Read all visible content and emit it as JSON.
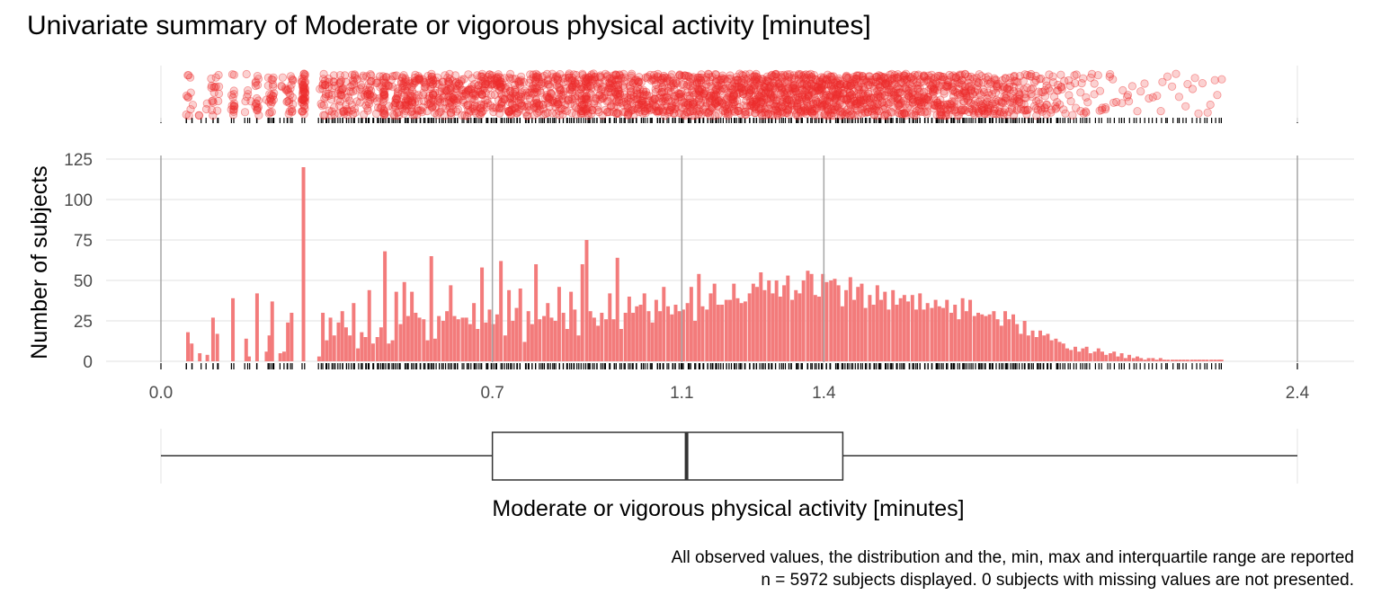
{
  "title": "Univariate summary of Moderate or vigorous physical activity [minutes]",
  "colors": {
    "bar": "#f37b7b",
    "point": "#ee2c2c",
    "grid_major": "#ebebeb",
    "vline": "#a6a6a6"
  },
  "chart_data": {
    "type": "bar",
    "title": "Univariate summary of Moderate or vigorous physical activity [minutes]",
    "xlabel": "Moderate or vigorous physical activity [minutes]",
    "ylabel": "Number of subjects",
    "xlim": [
      0.0,
      2.4
    ],
    "ylim": [
      0,
      125
    ],
    "x_ticks": [
      "0.0",
      "0.7",
      "1.1",
      "1.4",
      "2.4"
    ],
    "x_tick_values": [
      0.0,
      0.7,
      1.1,
      1.4,
      2.4
    ],
    "y_ticks": [
      0,
      25,
      50,
      75,
      100,
      125
    ],
    "grid": true,
    "summary": {
      "min": 0.0,
      "q1": 0.7,
      "median": 1.11,
      "q3": 1.44,
      "max": 2.4
    },
    "n_subjects": 5972,
    "n_missing": 0,
    "bars": [
      [
        0.057,
        18
      ],
      [
        0.065,
        11
      ],
      [
        0.082,
        5
      ],
      [
        0.098,
        4
      ],
      [
        0.11,
        27
      ],
      [
        0.119,
        17
      ],
      [
        0.152,
        39
      ],
      [
        0.18,
        14
      ],
      [
        0.186,
        3
      ],
      [
        0.203,
        42
      ],
      [
        0.223,
        6
      ],
      [
        0.229,
        16
      ],
      [
        0.235,
        37
      ],
      [
        0.252,
        5
      ],
      [
        0.26,
        6
      ],
      [
        0.268,
        24
      ],
      [
        0.276,
        30
      ],
      [
        0.301,
        120
      ],
      [
        0.334,
        3
      ],
      [
        0.342,
        30
      ],
      [
        0.35,
        13
      ],
      [
        0.358,
        27
      ],
      [
        0.366,
        16
      ],
      [
        0.375,
        24
      ],
      [
        0.383,
        31
      ],
      [
        0.391,
        21
      ],
      [
        0.399,
        16
      ],
      [
        0.407,
        36
      ],
      [
        0.416,
        8
      ],
      [
        0.424,
        18
      ],
      [
        0.432,
        15
      ],
      [
        0.44,
        44
      ],
      [
        0.448,
        11
      ],
      [
        0.457,
        15
      ],
      [
        0.465,
        21
      ],
      [
        0.473,
        68
      ],
      [
        0.481,
        11
      ],
      [
        0.489,
        13
      ],
      [
        0.497,
        43
      ],
      [
        0.506,
        23
      ],
      [
        0.514,
        49
      ],
      [
        0.522,
        28
      ],
      [
        0.53,
        43
      ],
      [
        0.538,
        30
      ],
      [
        0.546,
        27
      ],
      [
        0.555,
        26
      ],
      [
        0.563,
        13
      ],
      [
        0.571,
        65
      ],
      [
        0.579,
        14
      ],
      [
        0.587,
        28
      ],
      [
        0.596,
        25
      ],
      [
        0.604,
        31
      ],
      [
        0.612,
        47
      ],
      [
        0.62,
        28
      ],
      [
        0.628,
        26
      ],
      [
        0.637,
        27
      ],
      [
        0.645,
        27
      ],
      [
        0.653,
        23
      ],
      [
        0.661,
        36
      ],
      [
        0.669,
        20
      ],
      [
        0.678,
        58
      ],
      [
        0.686,
        24
      ],
      [
        0.694,
        32
      ],
      [
        0.702,
        23
      ],
      [
        0.71,
        29
      ],
      [
        0.718,
        62
      ],
      [
        0.727,
        16
      ],
      [
        0.735,
        44
      ],
      [
        0.743,
        25
      ],
      [
        0.751,
        33
      ],
      [
        0.759,
        45
      ],
      [
        0.768,
        12
      ],
      [
        0.776,
        31
      ],
      [
        0.784,
        23
      ],
      [
        0.792,
        60
      ],
      [
        0.8,
        26
      ],
      [
        0.809,
        28
      ],
      [
        0.817,
        36
      ],
      [
        0.825,
        27
      ],
      [
        0.833,
        25
      ],
      [
        0.841,
        46
      ],
      [
        0.85,
        30
      ],
      [
        0.858,
        20
      ],
      [
        0.866,
        43
      ],
      [
        0.874,
        32
      ],
      [
        0.882,
        16
      ],
      [
        0.89,
        60
      ],
      [
        0.899,
        75
      ],
      [
        0.907,
        31
      ],
      [
        0.915,
        27
      ],
      [
        0.923,
        22
      ],
      [
        0.931,
        30
      ],
      [
        0.94,
        26
      ],
      [
        0.948,
        42
      ],
      [
        0.956,
        26
      ],
      [
        0.964,
        64
      ],
      [
        0.972,
        20
      ],
      [
        0.981,
        30
      ],
      [
        0.989,
        40
      ],
      [
        0.997,
        30
      ],
      [
        1.005,
        34
      ],
      [
        1.013,
        35
      ],
      [
        1.021,
        42
      ],
      [
        1.03,
        31
      ],
      [
        1.038,
        24
      ],
      [
        1.046,
        38
      ],
      [
        1.054,
        31
      ],
      [
        1.062,
        46
      ],
      [
        1.071,
        34
      ],
      [
        1.079,
        29
      ],
      [
        1.087,
        35
      ],
      [
        1.095,
        31
      ],
      [
        1.103,
        32
      ],
      [
        1.112,
        36
      ],
      [
        1.12,
        46
      ],
      [
        1.128,
        25
      ],
      [
        1.136,
        54
      ],
      [
        1.144,
        34
      ],
      [
        1.153,
        32
      ],
      [
        1.161,
        42
      ],
      [
        1.169,
        48
      ],
      [
        1.177,
        35
      ],
      [
        1.185,
        35
      ],
      [
        1.194,
        38
      ],
      [
        1.202,
        38
      ],
      [
        1.21,
        48
      ],
      [
        1.218,
        39
      ],
      [
        1.226,
        36
      ],
      [
        1.234,
        37
      ],
      [
        1.243,
        42
      ],
      [
        1.251,
        48
      ],
      [
        1.259,
        46
      ],
      [
        1.267,
        55
      ],
      [
        1.275,
        44
      ],
      [
        1.284,
        50
      ],
      [
        1.292,
        42
      ],
      [
        1.3,
        50
      ],
      [
        1.308,
        40
      ],
      [
        1.316,
        47
      ],
      [
        1.324,
        53
      ],
      [
        1.333,
        38
      ],
      [
        1.341,
        44
      ],
      [
        1.349,
        42
      ],
      [
        1.357,
        50
      ],
      [
        1.366,
        56
      ],
      [
        1.374,
        54
      ],
      [
        1.382,
        41
      ],
      [
        1.39,
        40
      ],
      [
        1.398,
        54
      ],
      [
        1.406,
        49
      ],
      [
        1.415,
        50
      ],
      [
        1.423,
        51
      ],
      [
        1.431,
        47
      ],
      [
        1.439,
        34
      ],
      [
        1.447,
        44
      ],
      [
        1.456,
        52
      ],
      [
        1.464,
        38
      ],
      [
        1.472,
        46
      ],
      [
        1.48,
        48
      ],
      [
        1.488,
        33
      ],
      [
        1.497,
        41
      ],
      [
        1.505,
        35
      ],
      [
        1.513,
        47
      ],
      [
        1.521,
        38
      ],
      [
        1.529,
        43
      ],
      [
        1.537,
        32
      ],
      [
        1.546,
        44
      ],
      [
        1.554,
        35
      ],
      [
        1.562,
        39
      ],
      [
        1.57,
        41
      ],
      [
        1.578,
        37
      ],
      [
        1.587,
        41
      ],
      [
        1.595,
        32
      ],
      [
        1.603,
        42
      ],
      [
        1.611,
        32
      ],
      [
        1.619,
        36
      ],
      [
        1.628,
        33
      ],
      [
        1.636,
        38
      ],
      [
        1.644,
        34
      ],
      [
        1.652,
        33
      ],
      [
        1.66,
        38
      ],
      [
        1.669,
        30
      ],
      [
        1.677,
        35
      ],
      [
        1.685,
        26
      ],
      [
        1.693,
        39
      ],
      [
        1.701,
        31
      ],
      [
        1.709,
        38
      ],
      [
        1.718,
        28
      ],
      [
        1.726,
        30
      ],
      [
        1.734,
        29
      ],
      [
        1.742,
        28
      ],
      [
        1.75,
        29
      ],
      [
        1.759,
        31
      ],
      [
        1.767,
        26
      ],
      [
        1.775,
        22
      ],
      [
        1.783,
        31
      ],
      [
        1.791,
        26
      ],
      [
        1.8,
        29
      ],
      [
        1.808,
        23
      ],
      [
        1.816,
        17
      ],
      [
        1.824,
        25
      ],
      [
        1.832,
        16
      ],
      [
        1.841,
        19
      ],
      [
        1.849,
        15
      ],
      [
        1.857,
        19
      ],
      [
        1.865,
        16
      ],
      [
        1.873,
        17
      ],
      [
        1.881,
        13
      ],
      [
        1.89,
        14
      ],
      [
        1.898,
        12
      ],
      [
        1.906,
        11
      ],
      [
        1.914,
        8
      ],
      [
        1.922,
        7
      ],
      [
        1.931,
        9
      ],
      [
        1.939,
        6
      ],
      [
        1.947,
        8
      ],
      [
        1.955,
        9
      ],
      [
        1.963,
        5
      ],
      [
        1.972,
        6
      ],
      [
        1.98,
        8
      ],
      [
        1.988,
        6
      ],
      [
        1.996,
        4
      ],
      [
        2.005,
        5
      ],
      [
        2.013,
        6
      ],
      [
        2.021,
        3
      ],
      [
        2.029,
        5
      ],
      [
        2.037,
        2
      ],
      [
        2.045,
        4
      ],
      [
        2.054,
        2
      ],
      [
        2.062,
        3
      ],
      [
        2.07,
        2
      ],
      [
        2.078,
        1
      ],
      [
        2.086,
        2
      ],
      [
        2.095,
        2
      ],
      [
        2.103,
        1
      ],
      [
        2.111,
        2
      ],
      [
        2.119,
        1
      ],
      [
        2.127,
        1
      ],
      [
        2.136,
        1
      ],
      [
        2.144,
        1
      ],
      [
        2.152,
        1
      ],
      [
        2.16,
        1
      ],
      [
        2.168,
        1
      ],
      [
        2.177,
        1
      ],
      [
        2.185,
        1
      ],
      [
        2.193,
        1
      ],
      [
        2.201,
        1
      ],
      [
        2.209,
        1
      ],
      [
        2.218,
        1
      ],
      [
        2.226,
        1
      ],
      [
        2.234,
        1
      ],
      [
        2.24,
        1
      ]
    ]
  },
  "caption": {
    "line1": "All observed values, the distribution and the, min, max and interquartile range are reported",
    "line2": "n = 5972 subjects displayed. 0 subjects with missing values are not presented."
  }
}
